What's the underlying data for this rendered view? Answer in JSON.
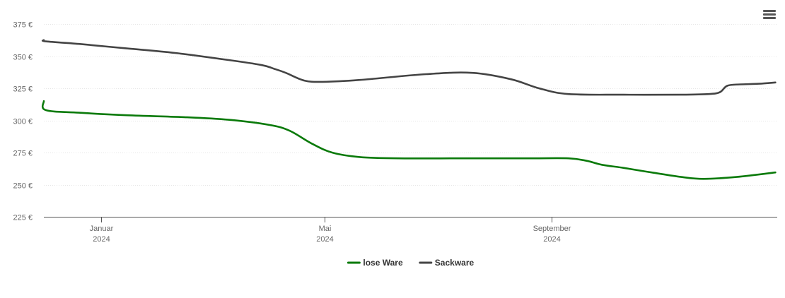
{
  "menu": {
    "icon": "hamburger-menu-icon"
  },
  "chart_data": {
    "type": "line",
    "title": "",
    "xlabel": "",
    "ylabel": "",
    "ylim": [
      225,
      375
    ],
    "y_ticks": [
      225,
      250,
      275,
      300,
      325,
      350,
      375
    ],
    "y_tick_labels": [
      "225 €",
      "250 €",
      "275 €",
      "300 €",
      "325 €",
      "350 €",
      "375 €"
    ],
    "x_range": [
      "2023-12-01",
      "2024-12-31"
    ],
    "x_ticks": [
      {
        "date": "2024-01-01",
        "month": "Januar",
        "year": "2024"
      },
      {
        "date": "2024-05-01",
        "month": "Mai",
        "year": "2024"
      },
      {
        "date": "2024-09-01",
        "month": "September",
        "year": "2024"
      }
    ],
    "grid": true,
    "legend_position": "bottom-center",
    "series": [
      {
        "name": "lose Ware",
        "color": "#0a7a0a",
        "points": [
          [
            "2023-12-01",
            315
          ],
          [
            "2023-12-02",
            308
          ],
          [
            "2023-12-20",
            306
          ],
          [
            "2024-01-15",
            304
          ],
          [
            "2024-02-15",
            302.5
          ],
          [
            "2024-03-10",
            300.5
          ],
          [
            "2024-04-01",
            296.5
          ],
          [
            "2024-04-12",
            292
          ],
          [
            "2024-04-24",
            282
          ],
          [
            "2024-05-05",
            275
          ],
          [
            "2024-05-20",
            271.5
          ],
          [
            "2024-06-10",
            270.5
          ],
          [
            "2024-07-15",
            270.5
          ],
          [
            "2024-08-20",
            270.5
          ],
          [
            "2024-09-10",
            270.5
          ],
          [
            "2024-09-20",
            268.5
          ],
          [
            "2024-09-28",
            265.5
          ],
          [
            "2024-10-10",
            263
          ],
          [
            "2024-10-25",
            259.5
          ],
          [
            "2024-11-10",
            256
          ],
          [
            "2024-11-22",
            254.5
          ],
          [
            "2024-12-10",
            256
          ],
          [
            "2024-12-31",
            259.5
          ]
        ]
      },
      {
        "name": "Sackware",
        "color": "#444444",
        "points": [
          [
            "2023-12-01",
            362.5
          ],
          [
            "2023-12-02",
            361.5
          ],
          [
            "2023-12-20",
            359.5
          ],
          [
            "2024-01-15",
            356
          ],
          [
            "2024-02-10",
            352.5
          ],
          [
            "2024-03-10",
            347
          ],
          [
            "2024-03-28",
            343
          ],
          [
            "2024-04-04",
            340
          ],
          [
            "2024-04-10",
            337
          ],
          [
            "2024-04-20",
            331
          ],
          [
            "2024-04-30",
            330
          ],
          [
            "2024-05-20",
            331.5
          ],
          [
            "2024-06-25",
            336
          ],
          [
            "2024-07-20",
            337
          ],
          [
            "2024-08-10",
            332
          ],
          [
            "2024-08-25",
            325
          ],
          [
            "2024-09-10",
            320.5
          ],
          [
            "2024-10-10",
            320
          ],
          [
            "2024-11-10",
            320
          ],
          [
            "2024-11-25",
            320.5
          ],
          [
            "2024-12-01",
            322
          ],
          [
            "2024-12-05",
            327
          ],
          [
            "2024-12-12",
            328
          ],
          [
            "2024-12-22",
            328.5
          ],
          [
            "2024-12-31",
            329.5
          ]
        ]
      }
    ]
  }
}
